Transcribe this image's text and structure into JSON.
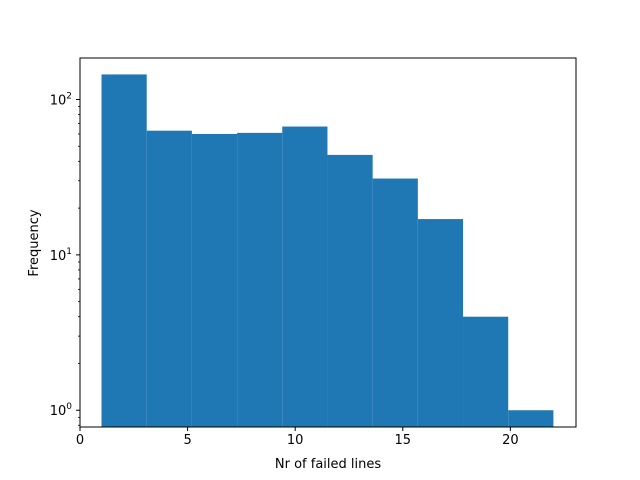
{
  "chart_data": {
    "type": "bar",
    "title": "",
    "xlabel": "Nr of failed lines",
    "ylabel": "Frequency",
    "xlim": [
      0,
      23.05
    ],
    "ylim": [
      0.78,
      185
    ],
    "y_scale": "log",
    "grid": false,
    "bar_color": "#1f77b4",
    "bins": [
      {
        "x0": 1.0,
        "x1": 3.1,
        "value": 145
      },
      {
        "x0": 3.1,
        "x1": 5.2,
        "value": 63
      },
      {
        "x0": 5.2,
        "x1": 7.3,
        "value": 60
      },
      {
        "x0": 7.3,
        "x1": 9.4,
        "value": 61
      },
      {
        "x0": 9.4,
        "x1": 11.5,
        "value": 67
      },
      {
        "x0": 11.5,
        "x1": 13.6,
        "value": 44
      },
      {
        "x0": 13.6,
        "x1": 15.7,
        "value": 31
      },
      {
        "x0": 15.7,
        "x1": 17.8,
        "value": 17
      },
      {
        "x0": 17.8,
        "x1": 19.9,
        "value": 4
      },
      {
        "x0": 19.9,
        "x1": 22.0,
        "value": 1
      }
    ],
    "x_ticks": [
      {
        "value": 0,
        "label": "0"
      },
      {
        "value": 5,
        "label": "5"
      },
      {
        "value": 10,
        "label": "10"
      },
      {
        "value": 15,
        "label": "15"
      },
      {
        "value": 20,
        "label": "20"
      }
    ],
    "y_ticks": [
      {
        "value": 1,
        "base": "10",
        "exp": "0"
      },
      {
        "value": 10,
        "base": "10",
        "exp": "1"
      },
      {
        "value": 100,
        "base": "10",
        "exp": "2"
      }
    ]
  }
}
